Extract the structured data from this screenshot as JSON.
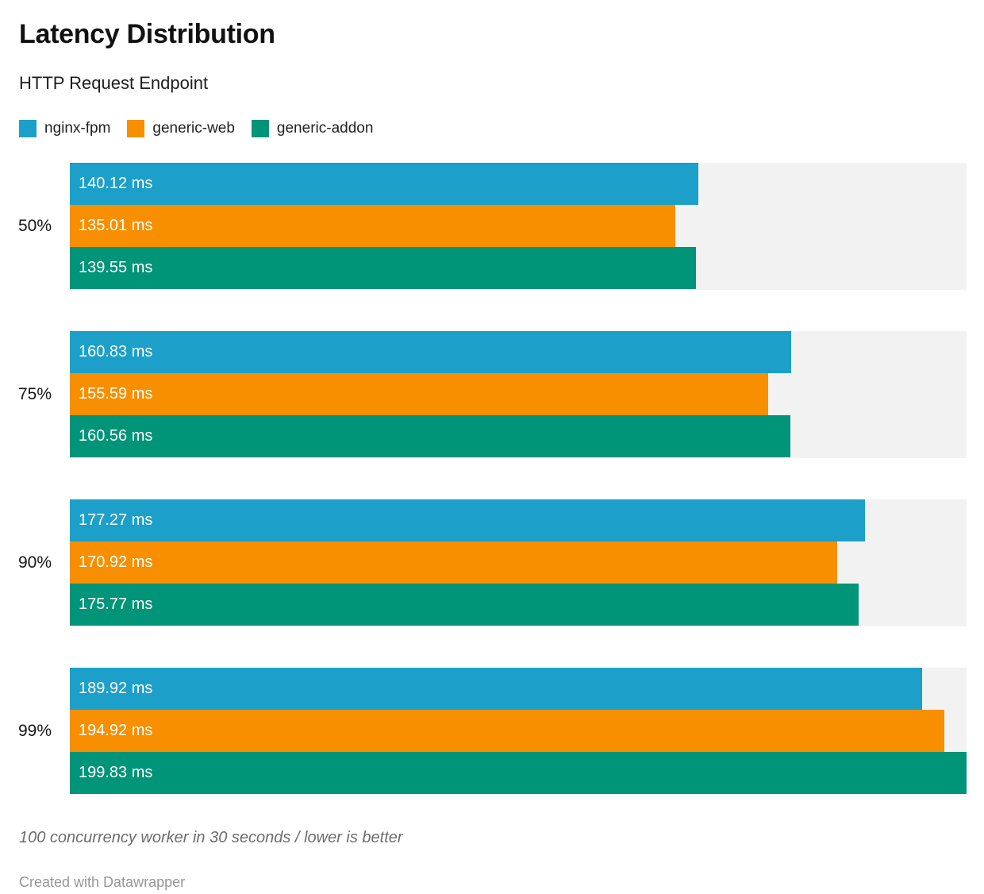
{
  "header": {
    "title": "Latency Distribution",
    "subtitle": "HTTP Request Endpoint"
  },
  "legend": {
    "items": [
      {
        "label": "nginx-fpm",
        "color": "#1ca0c9"
      },
      {
        "label": "generic-web",
        "color": "#f78f00"
      },
      {
        "label": "generic-addon",
        "color": "#009478"
      }
    ]
  },
  "footer": {
    "note": "100 concurrency worker in 30 seconds / lower is better",
    "credit": "Created with Datawrapper"
  },
  "colors": {
    "track": "#f2f2f2",
    "bar_label_text": "#ffffff"
  },
  "chart_data": {
    "type": "bar",
    "orientation": "horizontal",
    "title": "Latency Distribution",
    "subtitle": "HTTP Request Endpoint",
    "unit": "ms",
    "categories": [
      "50%",
      "75%",
      "90%",
      "99%"
    ],
    "series": [
      {
        "name": "nginx-fpm",
        "color": "#1ca0c9",
        "values": [
          140.12,
          160.83,
          177.27,
          189.92
        ],
        "labels": [
          "140.12 ms",
          "160.83 ms",
          "177.27 ms",
          "189.92 ms"
        ]
      },
      {
        "name": "generic-web",
        "color": "#f78f00",
        "values": [
          135.01,
          155.59,
          170.92,
          194.92
        ],
        "labels": [
          "135.01 ms",
          "155.59 ms",
          "170.92 ms",
          "194.92 ms"
        ]
      },
      {
        "name": "generic-addon",
        "color": "#009478",
        "values": [
          139.55,
          160.56,
          175.77,
          199.83
        ],
        "labels": [
          "139.55 ms",
          "160.56 ms",
          "175.77 ms",
          "199.83 ms"
        ]
      }
    ],
    "xlim": [
      0,
      199.83
    ],
    "grid": false,
    "legend_position": "top",
    "value_labels": "inside-start",
    "track_background": true
  }
}
